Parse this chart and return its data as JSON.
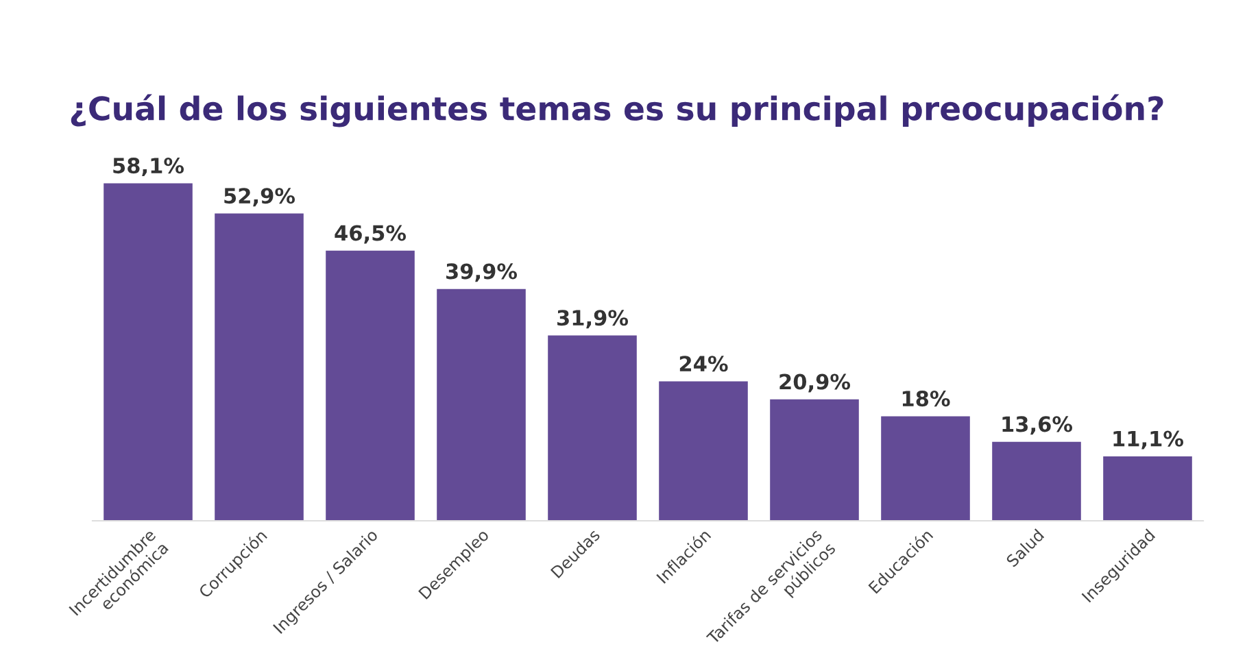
{
  "chart_data": {
    "type": "bar",
    "title": "¿Cuál de los siguientes temas es su principal preocupación?",
    "categories": [
      "Incertidumbre\neconómica",
      "Corrupción",
      "Ingresos / Salario",
      "Desempleo",
      "Deudas",
      "Inflación",
      "Tarifas de servicios\npúblicos",
      "Educación",
      "Salud",
      "Inseguridad"
    ],
    "values": [
      58.1,
      52.9,
      46.5,
      39.9,
      31.9,
      24,
      20.9,
      18,
      13.6,
      11.1
    ],
    "value_labels": [
      "58,1%",
      "52,9%",
      "46,5%",
      "39,9%",
      "31,9%",
      "24%",
      "20,9%",
      "18%",
      "13,6%",
      "11,1%"
    ],
    "color": "#634b96",
    "grid": false,
    "legend": false
  }
}
